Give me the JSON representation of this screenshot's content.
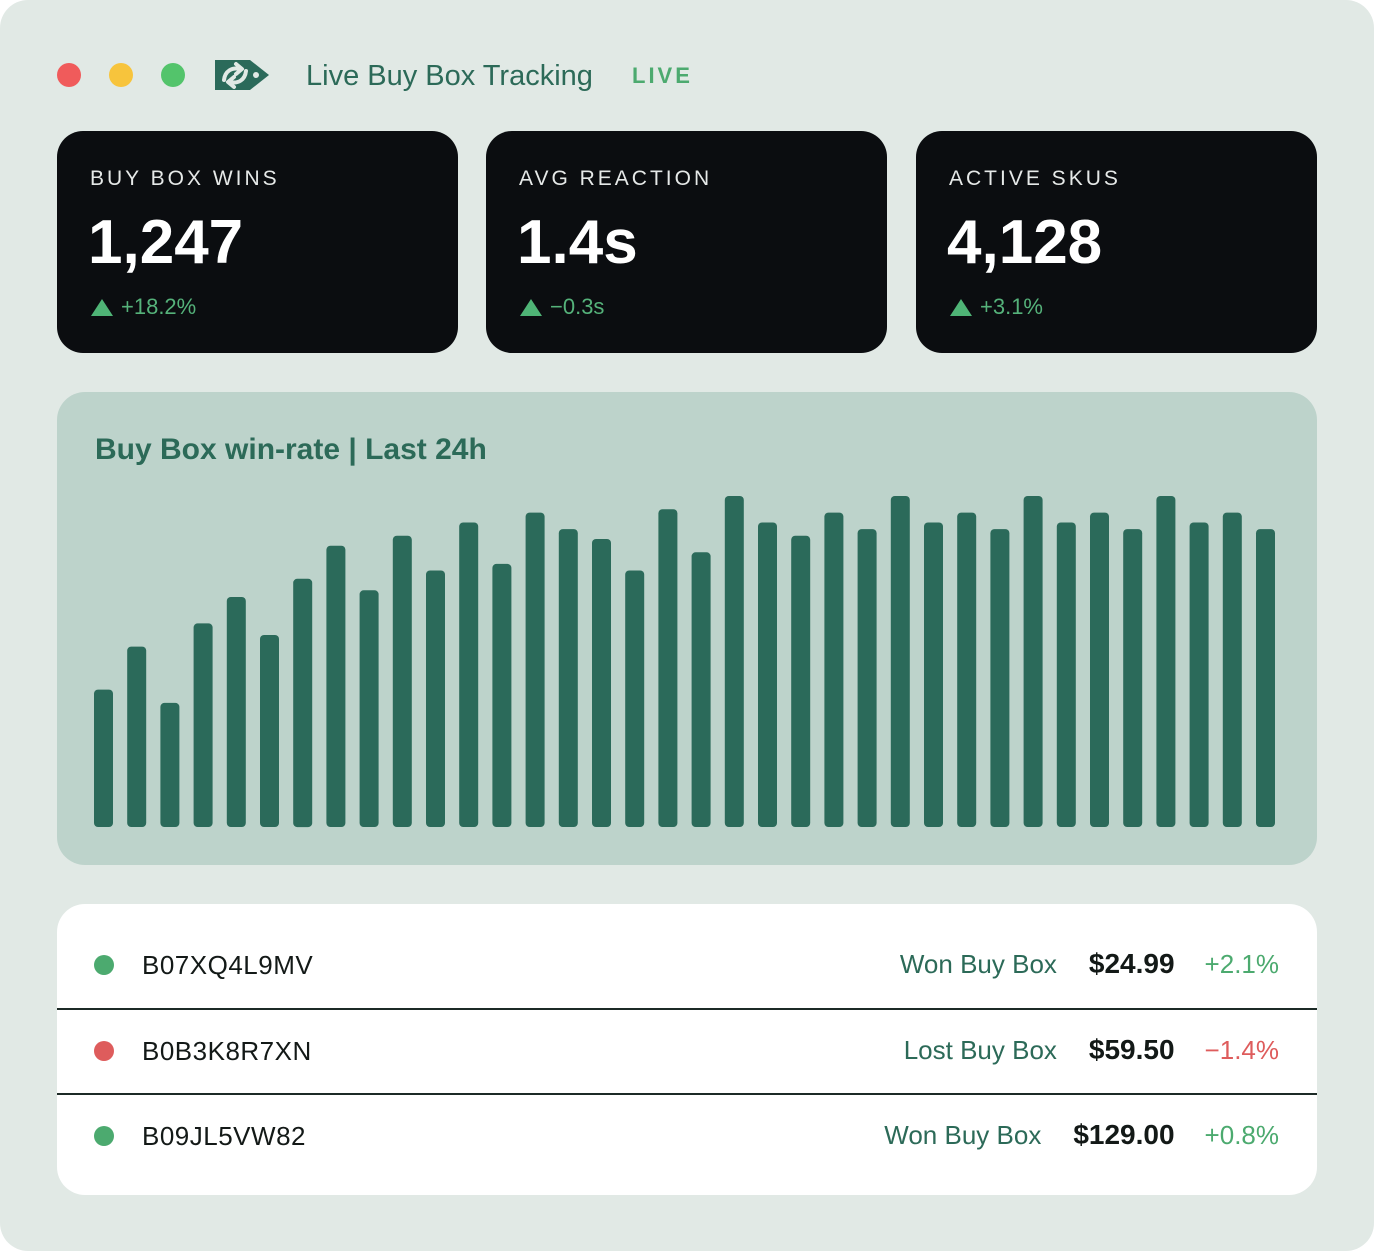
{
  "window": {
    "title": "Live Buy Box Tracking",
    "badge": "LIVE",
    "logo": "tag-arrows-logo-icon"
  },
  "stats": [
    {
      "label": "BUY BOX WINS",
      "value": "1,247",
      "delta": "+18.2%",
      "trend_icon": "triangle-up-icon"
    },
    {
      "label": "AVG REACTION",
      "value": "1.4s",
      "delta": "−0.3s",
      "trend_icon": "triangle-up-icon"
    },
    {
      "label": "ACTIVE SKUS",
      "value": "4,128",
      "delta": "+3.1%",
      "trend_icon": "triangle-up-icon"
    }
  ],
  "chart_title": "Buy Box win-rate | Last 24h",
  "chart_data": {
    "type": "bar",
    "title": "Buy Box win-rate | Last 24h",
    "xlabel": "",
    "ylabel": "",
    "grid": false,
    "axes_visible": false,
    "bar_color": "#2b6a5a",
    "ylim": [
      0,
      100
    ],
    "values": [
      41.5,
      54.5,
      37.5,
      61.5,
      69.5,
      58,
      75,
      85,
      71.5,
      88,
      77.5,
      92,
      79.5,
      95,
      90,
      87,
      77.5,
      96,
      83,
      100,
      92,
      88,
      95,
      90,
      100,
      92,
      95,
      90,
      100,
      92,
      95,
      90,
      100,
      92,
      95,
      90
    ]
  },
  "rows": [
    {
      "sku": "B07XQ4L9MV",
      "status": "Won Buy Box",
      "price": "$24.99",
      "change": "+2.1%",
      "state": "won",
      "dot_color": "#4caa6f"
    },
    {
      "sku": "B0B3K8R7XN",
      "status": "Lost Buy Box",
      "price": "$59.50",
      "change": "−1.4%",
      "state": "lost",
      "dot_color": "#de5c5c"
    },
    {
      "sku": "B09JL5VW82",
      "status": "Won Buy Box",
      "price": "$129.00",
      "change": "+0.8%",
      "state": "won",
      "dot_color": "#4caa6f"
    }
  ],
  "colors": {
    "background": "#e1e9e5",
    "accent": "#2c6a58",
    "positive": "#4caa6f",
    "negative": "#de5c5c",
    "card": "#0b0d10",
    "chart_panel": "#bdd3cb"
  }
}
